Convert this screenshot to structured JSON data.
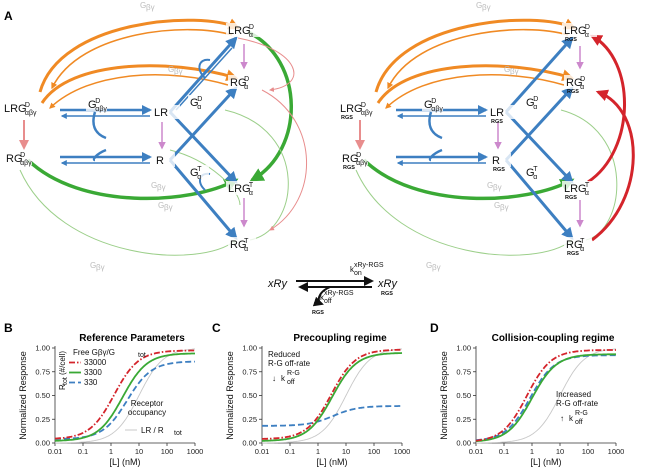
{
  "panel_labels": {
    "a": "A",
    "b": "B",
    "c": "C",
    "d": "D"
  },
  "network": {
    "gby": "G",
    "gby_sub": "βγ",
    "nodes_left": {
      "LRG_D": {
        "main": "LRG",
        "sup": "D",
        "sub": "α"
      },
      "RG_D_a": {
        "main": "RG",
        "sup": "D",
        "sub": "α"
      },
      "LRG_D_abg": {
        "main": "LRG",
        "sup": "D",
        "sub": "αβγ"
      },
      "G_D_abg": {
        "main": "G",
        "sup": "D",
        "sub": "αβγ"
      },
      "LR": {
        "main": "LR"
      },
      "G_D_a": {
        "main": "G",
        "sup": "D",
        "sub": "α"
      },
      "RG_D_abg": {
        "main": "RG",
        "sup": "D",
        "sub": "αβγ"
      },
      "R": {
        "main": "R"
      },
      "G_T_a": {
        "main": "G",
        "sup": "T",
        "sub": "α"
      },
      "LRG_T": {
        "main": "LRG",
        "sup": "T",
        "sub": "α"
      },
      "RG_T": {
        "main": "RG",
        "sup": "T",
        "sub": "α"
      }
    },
    "rgs_label": "RGS"
  },
  "rgs_equation": {
    "left": "xRy",
    "right": "xRy",
    "right_sub": "RGS",
    "kon": "k",
    "kon_sub": "on",
    "kon_sup": "xRy-RGS",
    "koff": "k",
    "koff_sub": "off",
    "koff_sup": "xRy-RGS",
    "rgs": "RGS"
  },
  "colors": {
    "orange": "#f08a24",
    "green": "#3aa935",
    "blue": "#3d7fc1",
    "pink": "#cc88cc",
    "red": "#d4242b",
    "salmon": "#e88d8d",
    "lightgreen": "#9ccf8a",
    "grey": "#c8c8c8"
  },
  "chart_data": [
    {
      "type": "line",
      "title": "Reference Parameters",
      "xlabel": "[L] (nM)",
      "ylabel": "Normalized Response",
      "xscale": "log",
      "xlim": [
        0.01,
        1000
      ],
      "ylim": [
        0,
        1
      ],
      "x_ticks": [
        "0.01",
        "0.1",
        "1",
        "10",
        "100",
        "1000"
      ],
      "y_ticks": [
        "0.00",
        "0.25",
        "0.50",
        "0.75",
        "1.00"
      ],
      "legend_title": "Free Gβγ/G",
      "legend_title_sub": "tot",
      "legend_side_label": "R",
      "legend_side_sub": "tot",
      "legend_side_unit": "(#/cell)",
      "series": [
        {
          "name": "33000",
          "color": "#d4242b",
          "dash": "dashdot",
          "base": 0.04,
          "top": 0.975,
          "ec50": 1.3,
          "n": 1.0
        },
        {
          "name": "3300",
          "color": "#3aa935",
          "dash": "solid",
          "base": 0.02,
          "top": 0.945,
          "ec50": 2.6,
          "n": 1.0
        },
        {
          "name": "330",
          "color": "#3d7fc1",
          "dash": "dashed",
          "base": 0.04,
          "top": 0.86,
          "ec50": 3.8,
          "n": 1.0
        }
      ],
      "reference": {
        "name": "LR / R",
        "name_sub": "tot",
        "color": "#c8c8c8",
        "base": 0.0,
        "top": 1.0,
        "ec50": 10,
        "n": 1.0
      },
      "annotation_lines": [
        "Receptor",
        "occupancy"
      ]
    },
    {
      "type": "line",
      "title": "Precoupling regime",
      "xlabel": "[L] (nM)",
      "ylabel": "Normalized Response",
      "xscale": "log",
      "xlim": [
        0.01,
        1000
      ],
      "ylim": [
        0,
        1
      ],
      "x_ticks": [
        "0.01",
        "0.1",
        "1",
        "10",
        "100",
        "1000"
      ],
      "y_ticks": [
        "0.00",
        "0.25",
        "0.50",
        "0.75",
        "1.00"
      ],
      "series": [
        {
          "name": "33000",
          "color": "#d4242b",
          "dash": "dashdot",
          "base": 0.04,
          "top": 0.985,
          "ec50": 3.0,
          "n": 1.0
        },
        {
          "name": "3300",
          "color": "#3aa935",
          "dash": "solid",
          "base": 0.02,
          "top": 0.95,
          "ec50": 3.2,
          "n": 1.0
        },
        {
          "name": "330",
          "color": "#3d7fc1",
          "dash": "dashed",
          "base": 0.18,
          "top": 0.39,
          "ec50": 3.5,
          "n": 1.0
        }
      ],
      "reference": {
        "color": "#c8c8c8",
        "base": 0.0,
        "top": 1.0,
        "ec50": 10,
        "n": 1.0
      },
      "annotation_lines": [
        "Reduced",
        "R-G off-rate"
      ],
      "k_label": {
        "k": "k",
        "sub": "off",
        "sup": "R-G",
        "arrow": "↓"
      }
    },
    {
      "type": "line",
      "title": "Collision-coupling regime",
      "xlabel": "[L] (nM)",
      "ylabel": "Normalized Response",
      "xscale": "log",
      "xlim": [
        0.01,
        1000
      ],
      "ylim": [
        0,
        1
      ],
      "x_ticks": [
        "0.01",
        "0.1",
        "1",
        "10",
        "100",
        "1000"
      ],
      "y_ticks": [
        "0.00",
        "0.25",
        "0.50",
        "0.75",
        "1.00"
      ],
      "series": [
        {
          "name": "33000",
          "color": "#d4242b",
          "dash": "dashdot",
          "base": 0.01,
          "top": 0.98,
          "ec50": 0.65,
          "n": 1.0
        },
        {
          "name": "3300",
          "color": "#3aa935",
          "dash": "solid",
          "base": 0.01,
          "top": 0.935,
          "ec50": 1.0,
          "n": 1.0
        },
        {
          "name": "330",
          "color": "#3d7fc1",
          "dash": "dashed",
          "base": 0.02,
          "top": 0.925,
          "ec50": 0.85,
          "n": 1.0
        }
      ],
      "reference": {
        "color": "#c8c8c8",
        "base": 0.0,
        "top": 1.0,
        "ec50": 10,
        "n": 1.0
      },
      "annotation_lines": [
        "Increased",
        "R-G off-rate"
      ],
      "k_label": {
        "k": "k",
        "sub": "off",
        "sup": "R-G",
        "arrow": "↑"
      }
    }
  ]
}
